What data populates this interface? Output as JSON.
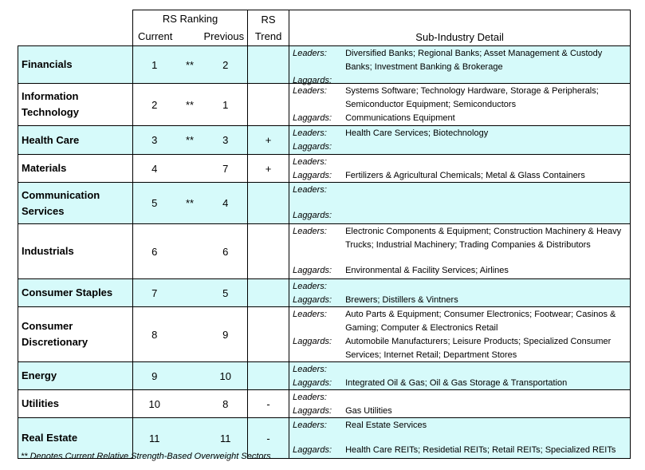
{
  "header": {
    "ranking": "RS Ranking",
    "current": "Current",
    "previous": "Previous",
    "trend": "RS Trend",
    "detail": "Sub-Industry Detail"
  },
  "labels": {
    "leaders": "Leaders:",
    "laggards": "Laggards:"
  },
  "rows": [
    {
      "sector": "Financials",
      "current": 1,
      "marker": "**",
      "previous": 2,
      "leaders": "Diversified Banks; Regional Banks; Asset Management & Custody Banks; Investment Banking & Brokerage"
    },
    {
      "sector": "Information Technology",
      "current": 2,
      "marker": "**",
      "previous": 1,
      "leaders": "Systems Software; Technology Hardware, Storage & Peripherals; Semiconductor Equipment; Semiconductors",
      "laggards": "Communications Equipment"
    },
    {
      "sector": "Health Care",
      "current": 3,
      "marker": "**",
      "previous": 3,
      "trend": "+",
      "leaders": "Health Care Services; Biotechnology"
    },
    {
      "sector": "Materials",
      "current": 4,
      "previous": 7,
      "trend": "+",
      "laggards": "Fertilizers & Agricultural Chemicals; Metal & Glass Containers"
    },
    {
      "sector": "Communication Services",
      "current": 5,
      "marker": "**",
      "previous": 4
    },
    {
      "sector": "Industrials",
      "current": 6,
      "previous": 6,
      "leaders": "Electronic Components & Equipment; Construction Machinery & Heavy Trucks; Industrial Machinery; Trading Companies & Distributors",
      "laggards": "Environmental & Facility Services; Airlines"
    },
    {
      "sector": "Consumer Staples",
      "current": 7,
      "previous": 5,
      "laggards": "Brewers; Distillers & Vintners"
    },
    {
      "sector": "Consumer Discretionary",
      "current": 8,
      "previous": 9,
      "leaders": "Auto Parts & Equipment; Consumer Electronics; Footwear; Casinos & Gaming; Computer & Electronics Retail",
      "laggards": "Automobile Manufacturers; Leisure Products; Specialized Consumer Services; Internet Retail; Department Stores"
    },
    {
      "sector": "Energy",
      "current": 9,
      "previous": 10,
      "laggards": "Integrated Oil & Gas; Oil & Gas Storage & Transportation"
    },
    {
      "sector": "Utilities",
      "current": 10,
      "previous": 8,
      "trend": "-",
      "laggards": "Gas Utilities"
    },
    {
      "sector": "Real Estate",
      "current": 11,
      "previous": 11,
      "trend": "-",
      "leaders": "Real Estate Services",
      "laggards": "Health Care REITs; Residetial REITs; Retail REITs; Specialized REITs"
    }
  ],
  "footnote": "** Denotes Current Relative Strength-Based Overweight Sectors"
}
